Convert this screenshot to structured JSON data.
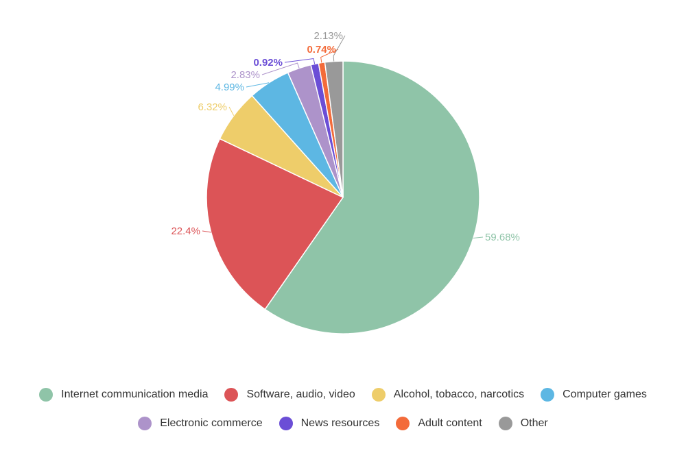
{
  "chart_data": {
    "type": "pie",
    "title": "",
    "slices": [
      {
        "label": "Internet communication media",
        "value": 59.68,
        "value_label": "59.68%",
        "color": "#8fc4a8"
      },
      {
        "label": "Software, audio, video",
        "value": 22.4,
        "value_label": "22.4%",
        "color": "#dc5457"
      },
      {
        "label": "Alcohol, tobacco, narcotics",
        "value": 6.32,
        "value_label": "6.32%",
        "color": "#eecd6a"
      },
      {
        "label": "Computer games",
        "value": 4.99,
        "value_label": "4.99%",
        "color": "#5db7e3"
      },
      {
        "label": "Electronic commerce",
        "value": 2.83,
        "value_label": "2.83%",
        "color": "#ad93ca"
      },
      {
        "label": "News resources",
        "value": 0.92,
        "value_label": "0.92%",
        "color": "#6b4ed6"
      },
      {
        "label": "Adult content",
        "value": 0.74,
        "value_label": "0.74%",
        "color": "#f36b3a"
      },
      {
        "label": "Other",
        "value": 2.13,
        "value_label": "2.13%",
        "color": "#999999"
      }
    ],
    "legend_position": "bottom"
  }
}
